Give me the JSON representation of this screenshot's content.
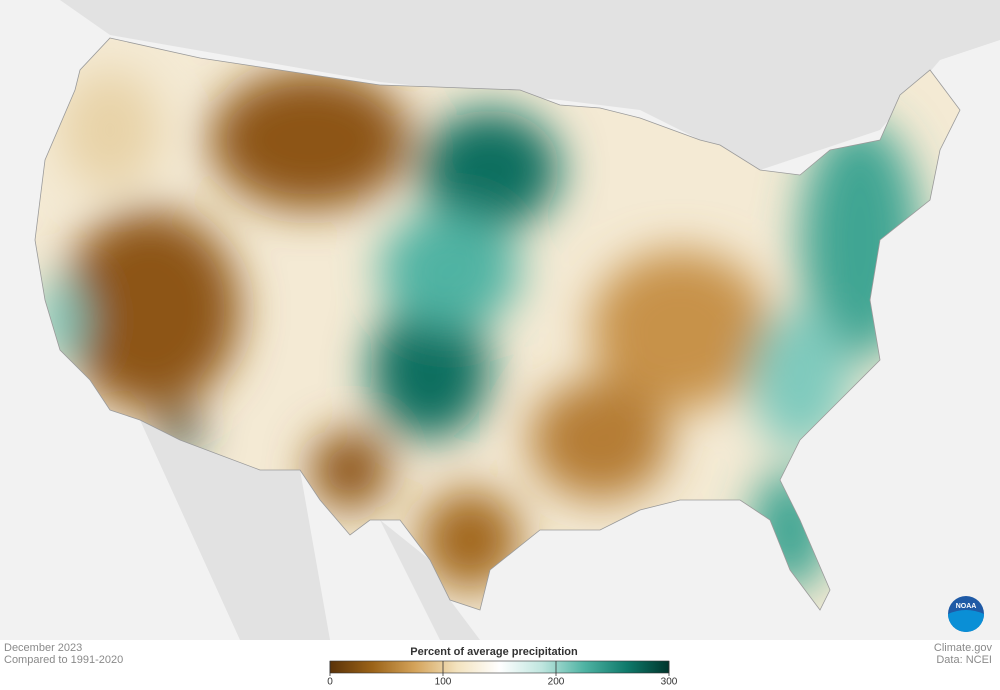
{
  "map": {
    "date": "December 2023",
    "baseline": "Compared to 1991-2020",
    "credit": "Climate.gov",
    "source": "Data: NCEI",
    "logo": "NOAA"
  },
  "legend": {
    "title": "Percent of average precipitation",
    "range": [
      0,
      300
    ],
    "ticks": [
      0,
      100,
      200,
      300
    ],
    "colors": [
      "#5a3208",
      "#9b6318",
      "#d4a35a",
      "#f3e3bf",
      "#ffffff",
      "#bfe6df",
      "#4fb3a3",
      "#0f7a6b",
      "#00352c"
    ]
  }
}
